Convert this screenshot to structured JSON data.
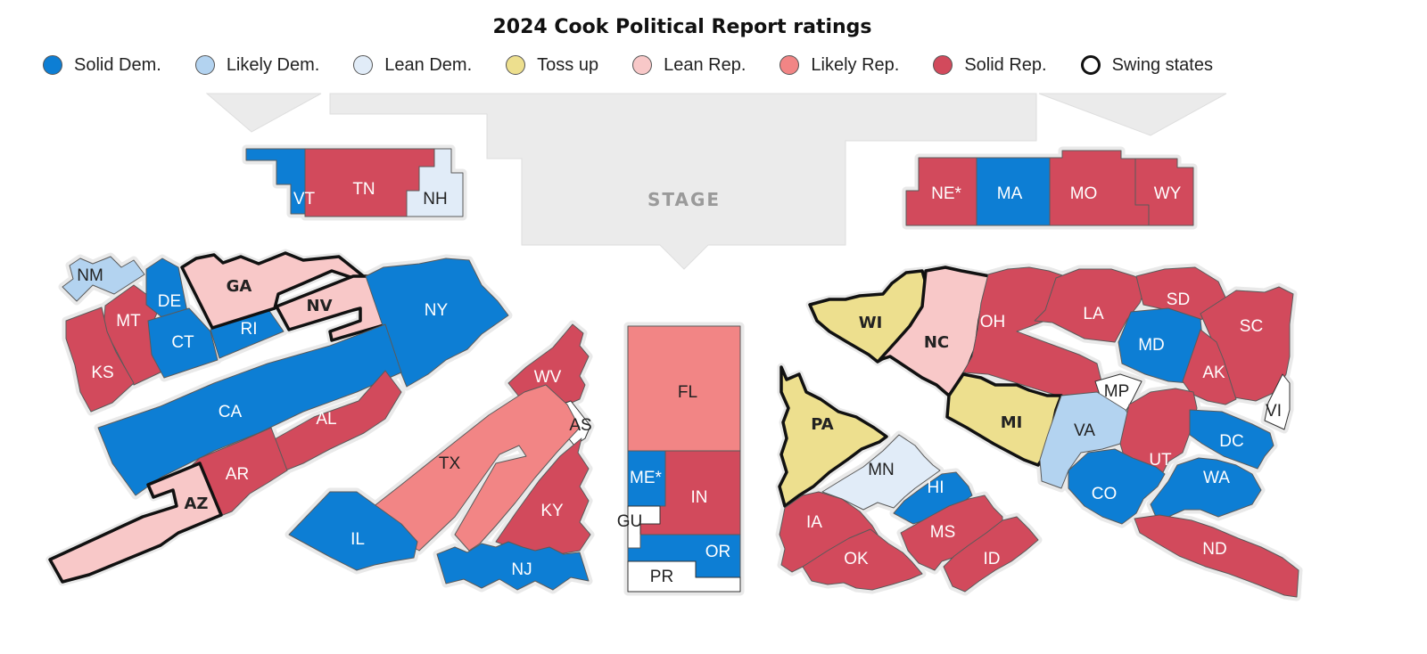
{
  "title": "2024 Cook Political Report ratings",
  "legend": [
    {
      "key": "solid_dem",
      "label": "Solid Dem.",
      "color": "#0d7ed4"
    },
    {
      "key": "likely_dem",
      "label": "Likely Dem.",
      "color": "#b3d3f0"
    },
    {
      "key": "lean_dem",
      "label": "Lean Dem.",
      "color": "#e1ecf8"
    },
    {
      "key": "toss_up",
      "label": "Toss up",
      "color": "#eddf8e"
    },
    {
      "key": "lean_rep",
      "label": "Lean Rep.",
      "color": "#f8c8c8"
    },
    {
      "key": "likely_rep",
      "label": "Likely Rep.",
      "color": "#f28585"
    },
    {
      "key": "solid_rep",
      "label": "Solid Rep.",
      "color": "#d24a5c"
    },
    {
      "key": "swing",
      "label": "Swing states",
      "color": "#ffffff"
    }
  ],
  "stage_label": "STAGE",
  "delegations": [
    {
      "code": "VT",
      "label": "VT",
      "rating": "solid_dem"
    },
    {
      "code": "TN",
      "label": "TN",
      "rating": "solid_rep"
    },
    {
      "code": "NH",
      "label": "NH",
      "rating": "lean_dem"
    },
    {
      "code": "NE",
      "label": "NE*",
      "rating": "solid_rep"
    },
    {
      "code": "MA",
      "label": "MA",
      "rating": "solid_dem"
    },
    {
      "code": "MO",
      "label": "MO",
      "rating": "solid_rep"
    },
    {
      "code": "WY",
      "label": "WY",
      "rating": "solid_rep"
    },
    {
      "code": "NM",
      "label": "NM",
      "rating": "likely_dem"
    },
    {
      "code": "MT",
      "label": "MT",
      "rating": "solid_rep"
    },
    {
      "code": "KS",
      "label": "KS",
      "rating": "solid_rep"
    },
    {
      "code": "DE",
      "label": "DE",
      "rating": "solid_dem"
    },
    {
      "code": "CT",
      "label": "CT",
      "rating": "solid_dem"
    },
    {
      "code": "RI",
      "label": "RI",
      "rating": "solid_dem"
    },
    {
      "code": "GA",
      "label": "GA",
      "rating": "lean_rep",
      "swing": true
    },
    {
      "code": "NV",
      "label": "NV",
      "rating": "lean_rep",
      "swing": true
    },
    {
      "code": "NY",
      "label": "NY",
      "rating": "solid_dem"
    },
    {
      "code": "CA",
      "label": "CA",
      "rating": "solid_dem"
    },
    {
      "code": "AL",
      "label": "AL",
      "rating": "solid_rep"
    },
    {
      "code": "AR",
      "label": "AR",
      "rating": "solid_rep"
    },
    {
      "code": "AZ",
      "label": "AZ",
      "rating": "lean_rep",
      "swing": true
    },
    {
      "code": "WV",
      "label": "WV",
      "rating": "solid_rep"
    },
    {
      "code": "AS",
      "label": "AS",
      "rating": "none"
    },
    {
      "code": "TX",
      "label": "TX",
      "rating": "likely_rep"
    },
    {
      "code": "KY",
      "label": "KY",
      "rating": "solid_rep"
    },
    {
      "code": "IL",
      "label": "IL",
      "rating": "solid_dem"
    },
    {
      "code": "NJ",
      "label": "NJ",
      "rating": "solid_dem"
    },
    {
      "code": "FL",
      "label": "FL",
      "rating": "likely_rep"
    },
    {
      "code": "ME",
      "label": "ME*",
      "rating": "solid_dem"
    },
    {
      "code": "IN",
      "label": "IN",
      "rating": "solid_rep"
    },
    {
      "code": "GU",
      "label": "GU",
      "rating": "none"
    },
    {
      "code": "OR",
      "label": "OR",
      "rating": "solid_dem"
    },
    {
      "code": "PR",
      "label": "PR",
      "rating": "none"
    },
    {
      "code": "WI",
      "label": "WI",
      "rating": "toss_up",
      "swing": true
    },
    {
      "code": "NC",
      "label": "NC",
      "rating": "lean_rep",
      "swing": true
    },
    {
      "code": "OH",
      "label": "OH",
      "rating": "solid_rep"
    },
    {
      "code": "LA",
      "label": "LA",
      "rating": "solid_rep"
    },
    {
      "code": "SD",
      "label": "SD",
      "rating": "solid_rep"
    },
    {
      "code": "SC",
      "label": "SC",
      "rating": "solid_rep"
    },
    {
      "code": "MD",
      "label": "MD",
      "rating": "solid_dem"
    },
    {
      "code": "AK",
      "label": "AK",
      "rating": "solid_rep"
    },
    {
      "code": "MP",
      "label": "MP",
      "rating": "none"
    },
    {
      "code": "VI",
      "label": "VI",
      "rating": "none"
    },
    {
      "code": "MI",
      "label": "MI",
      "rating": "toss_up",
      "swing": true
    },
    {
      "code": "VA",
      "label": "VA",
      "rating": "likely_dem"
    },
    {
      "code": "UT",
      "label": "UT",
      "rating": "solid_rep"
    },
    {
      "code": "DC",
      "label": "DC",
      "rating": "solid_dem"
    },
    {
      "code": "PA",
      "label": "PA",
      "rating": "toss_up",
      "swing": true
    },
    {
      "code": "MN",
      "label": "MN",
      "rating": "lean_dem"
    },
    {
      "code": "HI",
      "label": "HI",
      "rating": "solid_dem"
    },
    {
      "code": "CO",
      "label": "CO",
      "rating": "solid_dem"
    },
    {
      "code": "WA",
      "label": "WA",
      "rating": "solid_dem"
    },
    {
      "code": "IA",
      "label": "IA",
      "rating": "solid_rep"
    },
    {
      "code": "OK",
      "label": "OK",
      "rating": "solid_rep"
    },
    {
      "code": "MS",
      "label": "MS",
      "rating": "solid_rep"
    },
    {
      "code": "ID",
      "label": "ID",
      "rating": "solid_rep"
    },
    {
      "code": "ND",
      "label": "ND",
      "rating": "solid_rep"
    }
  ]
}
